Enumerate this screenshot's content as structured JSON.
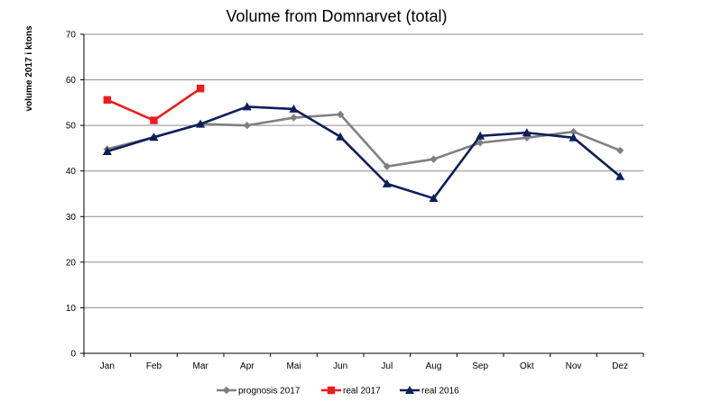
{
  "chart_data": {
    "type": "line",
    "title": "Volume from Domnarvet (total)",
    "xlabel": "",
    "ylabel": "volume 2017 i ktons",
    "categories": [
      "Jan",
      "Feb",
      "Mar",
      "Apr",
      "Mai",
      "Jun",
      "Jul",
      "Aug",
      "Sep",
      "Okt",
      "Nov",
      "Dez"
    ],
    "ylim": [
      0,
      70
    ],
    "yticks": [
      0,
      10,
      20,
      30,
      40,
      50,
      60,
      70
    ],
    "grid": true,
    "legend_position": "bottom",
    "series": [
      {
        "name": "prognosis 2017",
        "color": "#808080",
        "marker": "diamond",
        "values": [
          44.8,
          47.4,
          50.3,
          50.0,
          51.7,
          52.4,
          41.0,
          42.6,
          46.2,
          47.3,
          48.6,
          44.5
        ]
      },
      {
        "name": "real 2017",
        "color": "#ee1c1c",
        "marker": "square",
        "values": [
          55.6,
          51.1,
          58.1,
          null,
          null,
          null,
          null,
          null,
          null,
          null,
          null,
          null
        ]
      },
      {
        "name": "real 2016",
        "color": "#0d1f5a",
        "marker": "triangle",
        "values": [
          44.3,
          47.4,
          50.3,
          54.1,
          53.6,
          47.5,
          37.2,
          34.0,
          47.7,
          48.4,
          47.3,
          38.8
        ]
      }
    ]
  }
}
